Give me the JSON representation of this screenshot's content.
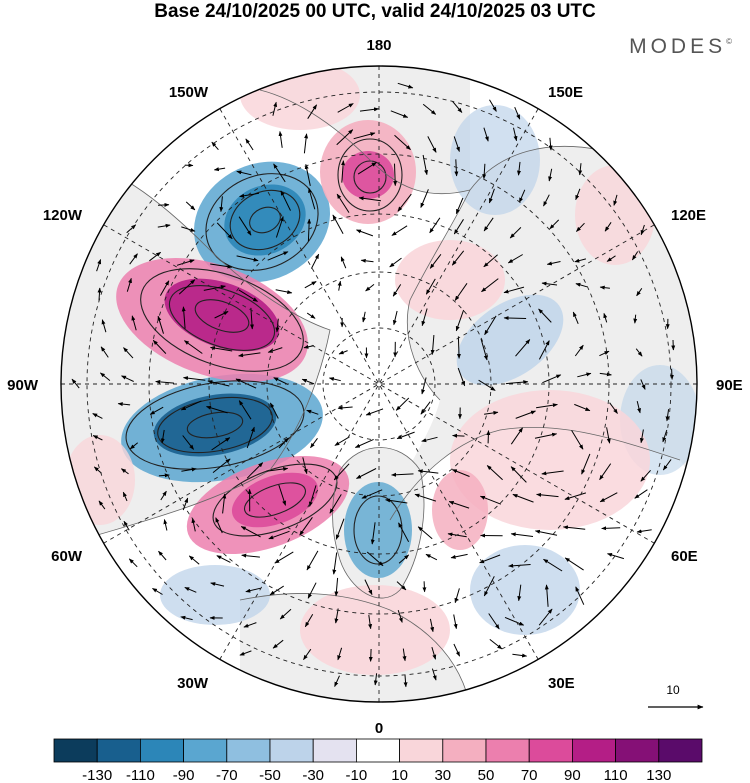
{
  "title": "Base 24/10/2025 00 UTC, valid 24/10/2025 03 UTC",
  "brand": {
    "name": "MODES",
    "mark": "©"
  },
  "longitude_labels": {
    "lon_180": "180",
    "lon_150E": "150E",
    "lon_120E": "120E",
    "lon_90E": "90E",
    "lon_60E": "60E",
    "lon_30E": "30E",
    "lon_0": "0",
    "lon_30W": "30W",
    "lon_60W": "60W",
    "lon_90W": "90W",
    "lon_120W": "120W",
    "lon_150W": "150W"
  },
  "vector_scale": {
    "label": "10"
  },
  "colorbar": {
    "labels": [
      "-130",
      "-110",
      "-90",
      "-70",
      "-50",
      "-30",
      "-10",
      "10",
      "30",
      "50",
      "70",
      "90",
      "110",
      "130"
    ],
    "colors": [
      "#0c3c5c",
      "#185f8e",
      "#2c86b8",
      "#5aa6d0",
      "#8fbfe0",
      "#bdd3ea",
      "#e4e2f0",
      "#ffffff",
      "#f9d6da",
      "#f4afc0",
      "#ec7fae",
      "#dc4b9b",
      "#b41e86",
      "#851076",
      "#5a0b6a"
    ]
  },
  "colors": {
    "land": "#eeeeee",
    "coast": "#666666",
    "grid": "#222222"
  }
}
